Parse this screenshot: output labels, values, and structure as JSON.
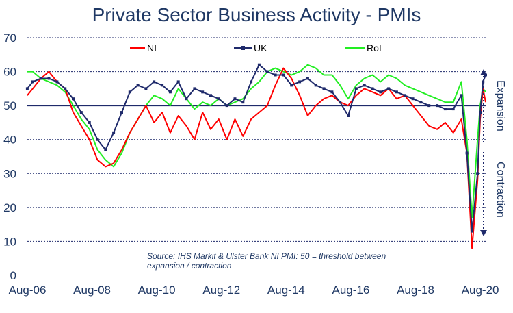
{
  "chart_data": {
    "type": "line",
    "title": "Private Sector Business Activity - PMIs",
    "ylim": [
      0,
      70
    ],
    "yticks": [
      "0",
      "10",
      "20",
      "30",
      "40",
      "50",
      "60",
      "70"
    ],
    "xticks": [
      "Aug-06",
      "Aug-08",
      "Aug-10",
      "Aug-12",
      "Aug-14",
      "Aug-16",
      "Aug-18",
      "Aug-20"
    ],
    "threshold": 50,
    "note_line1": "Source: IHS Markit & Ulster Bank NI PMI: 50 = threshold between",
    "note_line2": "expansion / contraction",
    "zone_upper": "Expansion",
    "zone_lower": "Contraction",
    "legend_position": "top",
    "series": [
      {
        "name": "NI",
        "color": "#ff0000",
        "points": [
          [
            2006.58,
            53
          ],
          [
            2006.75,
            55
          ],
          [
            2007.0,
            58
          ],
          [
            2007.25,
            60
          ],
          [
            2007.5,
            57
          ],
          [
            2007.75,
            55
          ],
          [
            2008.0,
            48
          ],
          [
            2008.25,
            44
          ],
          [
            2008.5,
            40
          ],
          [
            2008.75,
            34
          ],
          [
            2009.0,
            32
          ],
          [
            2009.25,
            33
          ],
          [
            2009.5,
            37
          ],
          [
            2009.75,
            42
          ],
          [
            2010.0,
            46
          ],
          [
            2010.25,
            50
          ],
          [
            2010.5,
            45
          ],
          [
            2010.75,
            48
          ],
          [
            2011.0,
            42
          ],
          [
            2011.25,
            47
          ],
          [
            2011.5,
            44
          ],
          [
            2011.75,
            40
          ],
          [
            2012.0,
            48
          ],
          [
            2012.25,
            43
          ],
          [
            2012.5,
            46
          ],
          [
            2012.75,
            40
          ],
          [
            2013.0,
            46
          ],
          [
            2013.25,
            41
          ],
          [
            2013.5,
            46
          ],
          [
            2013.75,
            48
          ],
          [
            2014.0,
            50
          ],
          [
            2014.25,
            56
          ],
          [
            2014.5,
            61
          ],
          [
            2014.75,
            58
          ],
          [
            2015.0,
            53
          ],
          [
            2015.25,
            47
          ],
          [
            2015.5,
            50
          ],
          [
            2015.75,
            52
          ],
          [
            2016.0,
            53
          ],
          [
            2016.25,
            51
          ],
          [
            2016.5,
            50
          ],
          [
            2016.75,
            53
          ],
          [
            2017.0,
            55
          ],
          [
            2017.25,
            54
          ],
          [
            2017.5,
            53
          ],
          [
            2017.75,
            55
          ],
          [
            2018.0,
            52
          ],
          [
            2018.25,
            53
          ],
          [
            2018.5,
            50
          ],
          [
            2018.75,
            47
          ],
          [
            2019.0,
            44
          ],
          [
            2019.25,
            43
          ],
          [
            2019.5,
            45
          ],
          [
            2019.75,
            42
          ],
          [
            2020.0,
            46
          ],
          [
            2020.17,
            36
          ],
          [
            2020.33,
            8
          ],
          [
            2020.5,
            28
          ],
          [
            2020.58,
            46
          ],
          [
            2020.67,
            55
          ],
          [
            2020.75,
            51
          ]
        ]
      },
      {
        "name": "UK",
        "color": "#1f2a6b",
        "points": [
          [
            2006.58,
            55
          ],
          [
            2006.75,
            57
          ],
          [
            2007.0,
            58
          ],
          [
            2007.25,
            58
          ],
          [
            2007.5,
            57
          ],
          [
            2007.75,
            55
          ],
          [
            2008.0,
            52
          ],
          [
            2008.25,
            48
          ],
          [
            2008.5,
            45
          ],
          [
            2008.75,
            40
          ],
          [
            2009.0,
            37
          ],
          [
            2009.25,
            42
          ],
          [
            2009.5,
            48
          ],
          [
            2009.75,
            54
          ],
          [
            2010.0,
            56
          ],
          [
            2010.25,
            55
          ],
          [
            2010.5,
            57
          ],
          [
            2010.75,
            56
          ],
          [
            2011.0,
            54
          ],
          [
            2011.25,
            57
          ],
          [
            2011.5,
            52
          ],
          [
            2011.75,
            55
          ],
          [
            2012.0,
            54
          ],
          [
            2012.25,
            53
          ],
          [
            2012.5,
            52
          ],
          [
            2012.75,
            50
          ],
          [
            2013.0,
            52
          ],
          [
            2013.25,
            51
          ],
          [
            2013.5,
            57
          ],
          [
            2013.75,
            62
          ],
          [
            2014.0,
            60
          ],
          [
            2014.25,
            59
          ],
          [
            2014.5,
            59
          ],
          [
            2014.75,
            56
          ],
          [
            2015.0,
            57
          ],
          [
            2015.25,
            58
          ],
          [
            2015.5,
            56
          ],
          [
            2015.75,
            55
          ],
          [
            2016.0,
            54
          ],
          [
            2016.25,
            51
          ],
          [
            2016.5,
            47
          ],
          [
            2016.75,
            55
          ],
          [
            2017.0,
            56
          ],
          [
            2017.25,
            55
          ],
          [
            2017.5,
            54
          ],
          [
            2017.75,
            55
          ],
          [
            2018.0,
            54
          ],
          [
            2018.25,
            53
          ],
          [
            2018.5,
            52
          ],
          [
            2018.75,
            51
          ],
          [
            2019.0,
            50
          ],
          [
            2019.25,
            50
          ],
          [
            2019.5,
            49
          ],
          [
            2019.75,
            49
          ],
          [
            2020.0,
            53
          ],
          [
            2020.17,
            36
          ],
          [
            2020.33,
            13
          ],
          [
            2020.5,
            30
          ],
          [
            2020.58,
            48
          ],
          [
            2020.67,
            57
          ],
          [
            2020.75,
            59
          ]
        ]
      },
      {
        "name": "RoI",
        "color": "#22ee22",
        "points": [
          [
            2006.58,
            60
          ],
          [
            2006.75,
            60
          ],
          [
            2007.0,
            58
          ],
          [
            2007.25,
            57
          ],
          [
            2007.5,
            56
          ],
          [
            2007.75,
            54
          ],
          [
            2008.0,
            50
          ],
          [
            2008.25,
            46
          ],
          [
            2008.5,
            43
          ],
          [
            2008.75,
            37
          ],
          [
            2009.0,
            34
          ],
          [
            2009.25,
            32
          ],
          [
            2009.5,
            36
          ],
          [
            2009.75,
            42
          ],
          [
            2010.0,
            46
          ],
          [
            2010.25,
            50
          ],
          [
            2010.5,
            53
          ],
          [
            2010.75,
            52
          ],
          [
            2011.0,
            50
          ],
          [
            2011.25,
            55
          ],
          [
            2011.5,
            52
          ],
          [
            2011.75,
            49
          ],
          [
            2012.0,
            51
          ],
          [
            2012.25,
            50
          ],
          [
            2012.5,
            52
          ],
          [
            2012.75,
            50
          ],
          [
            2013.0,
            51
          ],
          [
            2013.25,
            52
          ],
          [
            2013.5,
            55
          ],
          [
            2013.75,
            57
          ],
          [
            2014.0,
            60
          ],
          [
            2014.25,
            61
          ],
          [
            2014.5,
            60
          ],
          [
            2014.75,
            59
          ],
          [
            2015.0,
            60
          ],
          [
            2015.25,
            62
          ],
          [
            2015.5,
            61
          ],
          [
            2015.75,
            59
          ],
          [
            2016.0,
            59
          ],
          [
            2016.25,
            56
          ],
          [
            2016.5,
            52
          ],
          [
            2016.75,
            56
          ],
          [
            2017.0,
            58
          ],
          [
            2017.25,
            59
          ],
          [
            2017.5,
            57
          ],
          [
            2017.75,
            59
          ],
          [
            2018.0,
            58
          ],
          [
            2018.25,
            56
          ],
          [
            2018.5,
            55
          ],
          [
            2018.75,
            54
          ],
          [
            2019.0,
            53
          ],
          [
            2019.25,
            52
          ],
          [
            2019.5,
            51
          ],
          [
            2019.75,
            51
          ],
          [
            2020.0,
            57
          ],
          [
            2020.17,
            40
          ],
          [
            2020.33,
            17
          ],
          [
            2020.5,
            40
          ],
          [
            2020.58,
            50
          ],
          [
            2020.67,
            55
          ],
          [
            2020.75,
            54
          ]
        ]
      }
    ]
  }
}
